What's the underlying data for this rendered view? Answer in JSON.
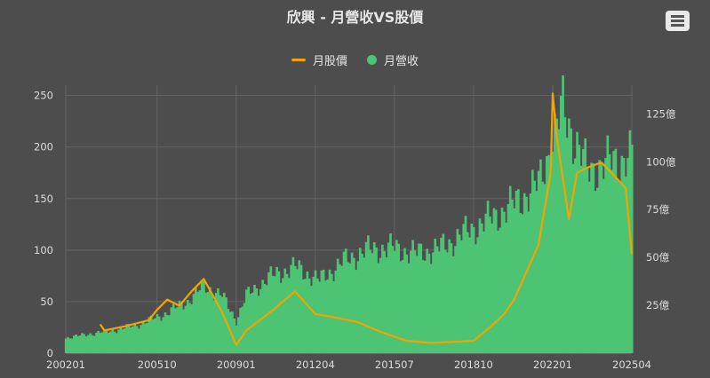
{
  "chart_data": {
    "type": "bar+line",
    "title": "欣興 - 月營收VS股價",
    "legend": [
      {
        "name": "月股價",
        "type": "line",
        "color": "#f0a500"
      },
      {
        "name": "月營收",
        "type": "bar",
        "color": "#4cc474"
      }
    ],
    "legend_position": "top-center",
    "grid": true,
    "x_axis": {
      "type": "month",
      "range": [
        "2002-01",
        "2025-04"
      ],
      "tick_labels": [
        "200201",
        "200510",
        "200901",
        "201204",
        "201507",
        "201810",
        "202201",
        "202504"
      ]
    },
    "y_left": {
      "label": "",
      "range": [
        0,
        260
      ],
      "ticks": [
        0,
        50,
        100,
        150,
        200,
        250
      ]
    },
    "y_right": {
      "label": "",
      "range": [
        0,
        140
      ],
      "tick_labels": [
        "25億",
        "50億",
        "75億",
        "100億",
        "125億"
      ]
    },
    "series": [
      {
        "name": "月營收",
        "type": "bar",
        "axis": "right",
        "unit": "億",
        "points": [
          [
            "2002-01",
            8
          ],
          [
            "2003-01",
            10
          ],
          [
            "2004-01",
            12
          ],
          [
            "2005-01",
            15
          ],
          [
            "2006-01",
            20
          ],
          [
            "2007-01",
            27
          ],
          [
            "2007-09",
            35
          ],
          [
            "2008-06",
            30
          ],
          [
            "2009-01",
            17
          ],
          [
            "2009-06",
            30
          ],
          [
            "2010-06",
            40
          ],
          [
            "2011-06",
            45
          ],
          [
            "2012-06",
            38
          ],
          [
            "2013-06",
            48
          ],
          [
            "2014-06",
            54
          ],
          [
            "2015-06",
            55
          ],
          [
            "2016-06",
            52
          ],
          [
            "2017-06",
            55
          ],
          [
            "2018-06",
            63
          ],
          [
            "2019-06",
            70
          ],
          [
            "2020-06",
            78
          ],
          [
            "2021-06",
            88
          ],
          [
            "2022-06",
            128
          ],
          [
            "2023-06",
            95
          ],
          [
            "2024-06",
            100
          ],
          [
            "2025-04",
            103
          ]
        ]
      },
      {
        "name": "月股價",
        "type": "line",
        "axis": "left",
        "points": [
          [
            "2003-06",
            28
          ],
          [
            "2003-08",
            22
          ],
          [
            "2004-06",
            26
          ],
          [
            "2005-06",
            32
          ],
          [
            "2005-10",
            42
          ],
          [
            "2006-03",
            52
          ],
          [
            "2006-09",
            46
          ],
          [
            "2007-03",
            60
          ],
          [
            "2007-09",
            72
          ],
          [
            "2008-06",
            40
          ],
          [
            "2009-01",
            8
          ],
          [
            "2009-06",
            22
          ],
          [
            "2010-06",
            40
          ],
          [
            "2011-06",
            60
          ],
          [
            "2012-04",
            38
          ],
          [
            "2013-01",
            35
          ],
          [
            "2014-01",
            30
          ],
          [
            "2015-01",
            20
          ],
          [
            "2016-01",
            12
          ],
          [
            "2017-01",
            10
          ],
          [
            "2018-01",
            11
          ],
          [
            "2018-10",
            12
          ],
          [
            "2019-06",
            25
          ],
          [
            "2020-01",
            38
          ],
          [
            "2020-06",
            52
          ],
          [
            "2021-06",
            105
          ],
          [
            "2021-12",
            175
          ],
          [
            "2022-01",
            252
          ],
          [
            "2022-03",
            210
          ],
          [
            "2022-09",
            130
          ],
          [
            "2023-01",
            175
          ],
          [
            "2023-06",
            180
          ],
          [
            "2024-01",
            185
          ],
          [
            "2024-06",
            175
          ],
          [
            "2025-01",
            160
          ],
          [
            "2025-04",
            96
          ]
        ]
      }
    ]
  }
}
